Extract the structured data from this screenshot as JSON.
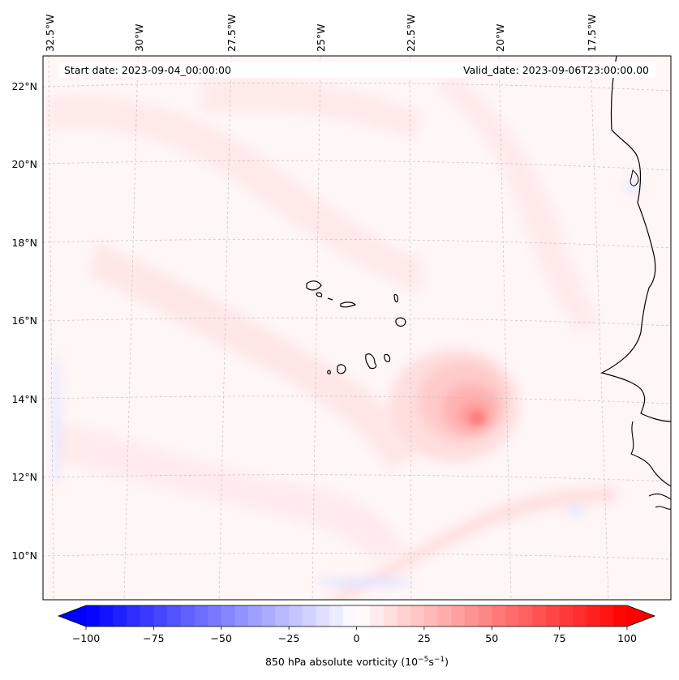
{
  "map": {
    "start_label": "Start date: 2023-09-04_00:00:00",
    "valid_label": "Valid_date: 2023-09-06T23:00:00.00",
    "lon_labels": [
      "32.5°W",
      "30°W",
      "27.5°W",
      "25°W",
      "22.5°W",
      "20°W",
      "17.5°W"
    ],
    "lat_labels": [
      "22°N",
      "20°N",
      "18°N",
      "16°N",
      "14°N",
      "12°N",
      "10°N"
    ],
    "features": [
      "Cabo Verde islands",
      "West African coastline",
      "vorticity maximum"
    ]
  },
  "colorbar": {
    "label_main": "850 hPa absolute vorticity (10",
    "label_exp1": "−5",
    "label_mid": "s",
    "label_exp2": "−1",
    "label_end": ")",
    "min": -100,
    "max": 100,
    "ticks": [
      -100,
      -75,
      -50,
      -25,
      0,
      25,
      50,
      75,
      100
    ],
    "tick_labels": [
      "−100",
      "−75",
      "−50",
      "−25",
      "0",
      "25",
      "50",
      "75",
      "100"
    ],
    "color_low": "#0000ff",
    "color_mid": "#ffffff",
    "color_high": "#ff0000"
  }
}
